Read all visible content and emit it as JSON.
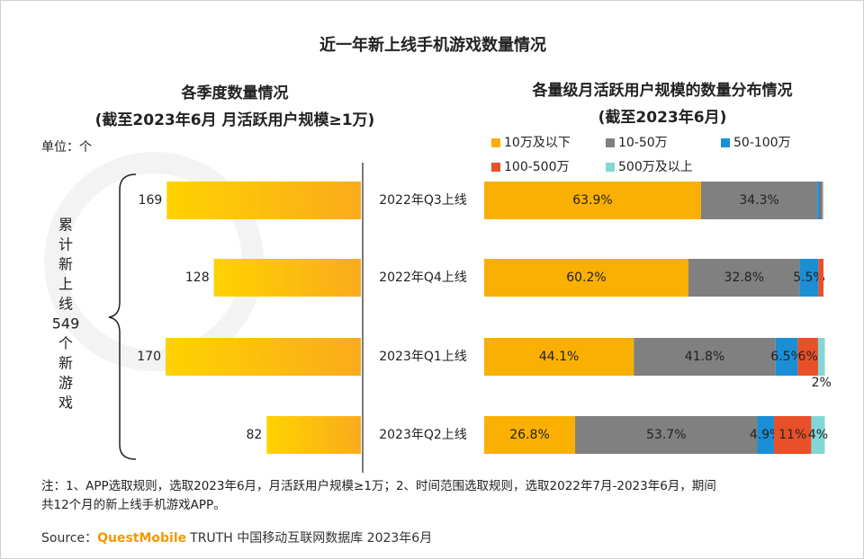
{
  "title": "近一年新上线手机游戏数量情况",
  "unit": "单位：个",
  "bracket_label": [
    "累",
    "计",
    "新",
    "上",
    "线",
    "549",
    "个",
    "新",
    "游",
    "戏"
  ],
  "note": [
    "注：1、APP选取规则，选取2023年6月，月活跃用户规模≥1万；2、时间范围选取规则，选取2022年7月-2023年6月，期间",
    "共12个月的新上线手机游戏APP。"
  ],
  "source": {
    "label": "Source：",
    "brand": "QuestMobile",
    "text": "TRUTH 中国移动互联网数据库 2023年6月"
  },
  "chart_data": [
    {
      "type": "bar",
      "orientation": "horizontal",
      "direction": "left",
      "title": "各季度数量情况",
      "subtitle": "(截至2023年6月 月活跃用户规模≥1万)",
      "categories": [
        "2022年Q3上线",
        "2022年Q4上线",
        "2023年Q1上线",
        "2023年Q2上线"
      ],
      "values": [
        169,
        128,
        170,
        82
      ],
      "color": [
        "#ffd200",
        "#f9ab1c"
      ]
    },
    {
      "type": "stacked-bar",
      "orientation": "horizontal",
      "title": "各量级月活跃用户规模的数量分布情况",
      "subtitle": "(截至2023年6月)",
      "xlim": [
        0,
        100
      ],
      "series": [
        {
          "name": "10万及以下",
          "color": "#f9b000",
          "values": [
            63.9,
            60.2,
            44.1,
            26.8
          ],
          "value_labels": [
            "63.9%",
            "60.2%",
            "44.1%",
            "26.8%"
          ]
        },
        {
          "name": "10-50万",
          "color": "#808080",
          "values": [
            34.3,
            32.8,
            41.8,
            53.7
          ],
          "value_labels": [
            "34.3%",
            "32.8%",
            "41.8%",
            "53.7%"
          ]
        },
        {
          "name": "50-100万",
          "color": "#1a8fd5",
          "values": [
            1.0,
            5.5,
            6.5,
            4.9
          ],
          "value_labels": [
            null,
            "5.5%",
            "6.5%",
            "4.9%"
          ]
        },
        {
          "name": "100-500万",
          "color": "#e8502a",
          "values": [
            0.5,
            1.5,
            6,
            11
          ],
          "value_labels": [
            null,
            null,
            "6%",
            "11%"
          ]
        },
        {
          "name": "500万及以上",
          "color": "#82d8d6",
          "values": [
            0.3,
            0,
            2,
            4
          ],
          "value_labels": [
            null,
            null,
            "2%",
            "4%"
          ]
        }
      ]
    }
  ]
}
